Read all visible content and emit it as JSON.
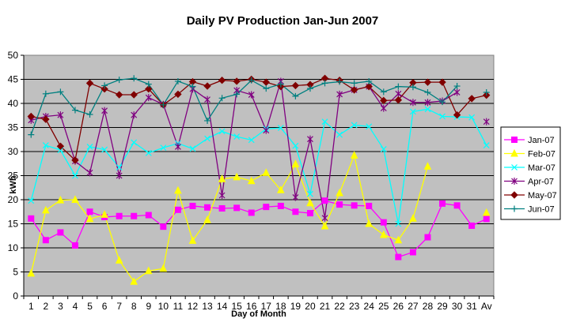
{
  "chart_data": {
    "type": "line",
    "title": "Daily PV Production Jan-Jun 2007",
    "xlabel": "Day of Month",
    "ylabel": "kWh",
    "categories": [
      "1",
      "2",
      "3",
      "4",
      "5",
      "6",
      "7",
      "8",
      "9",
      "10",
      "11",
      "12",
      "13",
      "14",
      "15",
      "16",
      "17",
      "18",
      "19",
      "20",
      "21",
      "22",
      "23",
      "24",
      "25",
      "26",
      "27",
      "28",
      "29",
      "30",
      "31",
      "Av"
    ],
    "ylim": [
      0,
      50
    ],
    "yticks": [
      "0",
      "5",
      "10",
      "15",
      "20",
      "25",
      "30",
      "35",
      "40",
      "45",
      "50"
    ],
    "grid": "horizontal",
    "legend_position": "right",
    "plot_background": "#c0c0c0",
    "series": [
      {
        "name": "Jan-07",
        "color": "#ff00ff",
        "marker": "square",
        "values": [
          16.1,
          11.6,
          13.2,
          10.5,
          17.5,
          16.4,
          16.6,
          16.6,
          16.8,
          14.4,
          17.9,
          18.7,
          18.4,
          18.2,
          18.3,
          17.3,
          18.5,
          18.7,
          17.5,
          17.2,
          19.8,
          19.0,
          18.8,
          18.7,
          15.3,
          8.1,
          9.1,
          12.2,
          19.2,
          18.8,
          14.6,
          16.0
        ]
      },
      {
        "name": "Feb-07",
        "color": "#ffff00",
        "marker": "triangle",
        "values": [
          4.7,
          17.8,
          19.9,
          20.0,
          16.0,
          16.9,
          7.4,
          3.0,
          5.2,
          5.7,
          21.9,
          11.5,
          15.8,
          24.3,
          24.7,
          23.9,
          25.6,
          22.0,
          27.4,
          19.3,
          14.5,
          21.4,
          29.2,
          15.0,
          12.7,
          11.6,
          16.1,
          26.9,
          null,
          null,
          null,
          17.3
        ]
      },
      {
        "name": "Mar-07",
        "color": "#00ffff",
        "marker": "x",
        "values": [
          19.8,
          31.3,
          30.3,
          25.0,
          31.0,
          30.4,
          26.7,
          31.9,
          29.7,
          30.8,
          31.7,
          30.6,
          32.7,
          34.2,
          33.1,
          32.4,
          34.7,
          34.9,
          31.2,
          21.2,
          36.2,
          33.5,
          35.5,
          35.2,
          30.5,
          15.0,
          38.3,
          38.8,
          37.3,
          37.2,
          37.1,
          31.3
        ]
      },
      {
        "name": "Apr-07",
        "color": "#800080",
        "marker": "star",
        "values": [
          36.5,
          37.3,
          37.6,
          28.0,
          25.6,
          38.5,
          25.0,
          37.6,
          41.2,
          39.8,
          31.0,
          43.0,
          40.8,
          20.9,
          42.7,
          41.8,
          34.4,
          44.6,
          20.5,
          32.6,
          16.2,
          41.9,
          42.8,
          43.5,
          39.0,
          42.0,
          40.2,
          40.2,
          40.5,
          42.3,
          null,
          36.2
        ]
      },
      {
        "name": "May-07",
        "color": "#800000",
        "marker": "diamond",
        "values": [
          37.3,
          36.7,
          31.1,
          28.2,
          44.2,
          43.0,
          41.8,
          41.8,
          43.0,
          39.7,
          41.9,
          44.5,
          43.6,
          44.8,
          44.6,
          45.0,
          44.4,
          43.5,
          43.7,
          43.9,
          45.2,
          44.8,
          42.8,
          43.5,
          40.6,
          40.7,
          44.3,
          44.4,
          44.4,
          37.6,
          41.0,
          41.7
        ]
      },
      {
        "name": "Jun-07",
        "color": "#008080",
        "marker": "plus",
        "values": [
          33.5,
          42.0,
          42.4,
          38.6,
          37.7,
          43.7,
          44.9,
          45.2,
          44.0,
          39.7,
          44.6,
          43.5,
          36.4,
          41.1,
          41.9,
          44.8,
          43.1,
          44.0,
          41.5,
          43.1,
          44.2,
          44.5,
          44.2,
          44.6,
          42.4,
          43.5,
          43.4,
          42.3,
          40.3,
          43.6,
          null,
          42.3
        ]
      }
    ]
  }
}
